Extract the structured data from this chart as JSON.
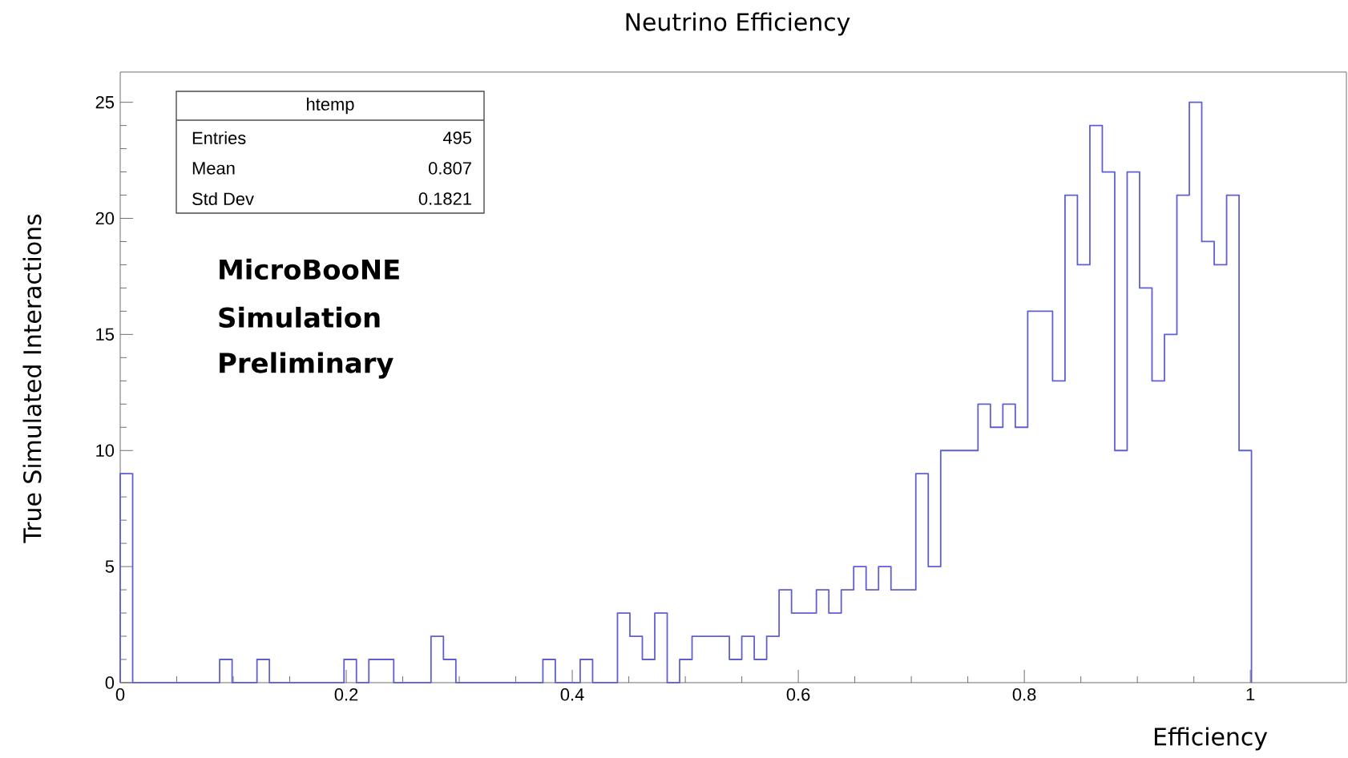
{
  "chart_data": {
    "type": "histogram",
    "title": "Neutrino Efficiency",
    "xlabel": "Efficiency",
    "ylabel": "True Simulated Interactions",
    "bins": [
      0,
      0.011,
      0.022,
      0.033,
      0.044,
      0.055,
      0.066,
      0.077,
      0.088,
      0.099,
      0.11,
      0.121,
      0.132,
      0.143,
      0.154,
      0.165,
      0.176,
      0.187,
      0.198,
      0.209,
      0.22,
      0.231,
      0.242,
      0.253,
      0.264,
      0.275,
      0.286,
      0.297,
      0.308,
      0.319,
      0.33,
      0.341,
      0.352,
      0.363,
      0.374,
      0.385,
      0.396,
      0.407,
      0.418,
      0.429,
      0.44,
      0.451,
      0.462,
      0.473,
      0.484,
      0.495,
      0.506,
      0.517,
      0.528,
      0.539,
      0.55,
      0.561,
      0.572,
      0.583,
      0.594,
      0.605,
      0.616,
      0.627,
      0.638,
      0.649,
      0.66,
      0.671,
      0.682,
      0.693,
      0.704,
      0.715,
      0.726,
      0.737,
      0.748,
      0.759,
      0.77,
      0.781,
      0.792,
      0.803,
      0.814,
      0.825,
      0.836,
      0.847,
      0.858,
      0.869,
      0.88,
      0.891,
      0.902,
      0.913,
      0.924,
      0.935,
      0.946,
      0.957,
      0.968,
      0.979,
      0.99,
      1.001
    ],
    "values": [
      9,
      0,
      0,
      0,
      0,
      0,
      0,
      0,
      1,
      0,
      0,
      1,
      0,
      0,
      0,
      0,
      0,
      0,
      1,
      0,
      1,
      1,
      0,
      0,
      0,
      2,
      1,
      0,
      0,
      0,
      0,
      0,
      0,
      0,
      1,
      0,
      0,
      1,
      0,
      0,
      3,
      2,
      1,
      3,
      0,
      1,
      2,
      2,
      2,
      1,
      2,
      1,
      2,
      4,
      3,
      3,
      4,
      3,
      4,
      5,
      4,
      5,
      4,
      4,
      9,
      5,
      10,
      10,
      10,
      12,
      11,
      12,
      11,
      16,
      16,
      13,
      21,
      18,
      24,
      22,
      10,
      22,
      17,
      13,
      15,
      21,
      25,
      19,
      18,
      21,
      10
    ],
    "color": "#5f5fd4",
    "xlim": [
      0,
      1.085
    ],
    "ylim": [
      0,
      26.3
    ],
    "xticks": [
      0,
      0.2,
      0.4,
      0.6,
      0.8,
      1
    ],
    "yticks": [
      0,
      5,
      10,
      15,
      20,
      25
    ],
    "annotations": [
      "htemp",
      "Entries",
      "495",
      "Mean",
      "0.807",
      "Std Dev",
      "0.1821",
      "MicroBooNE",
      "Simulation",
      "Preliminary"
    ]
  }
}
